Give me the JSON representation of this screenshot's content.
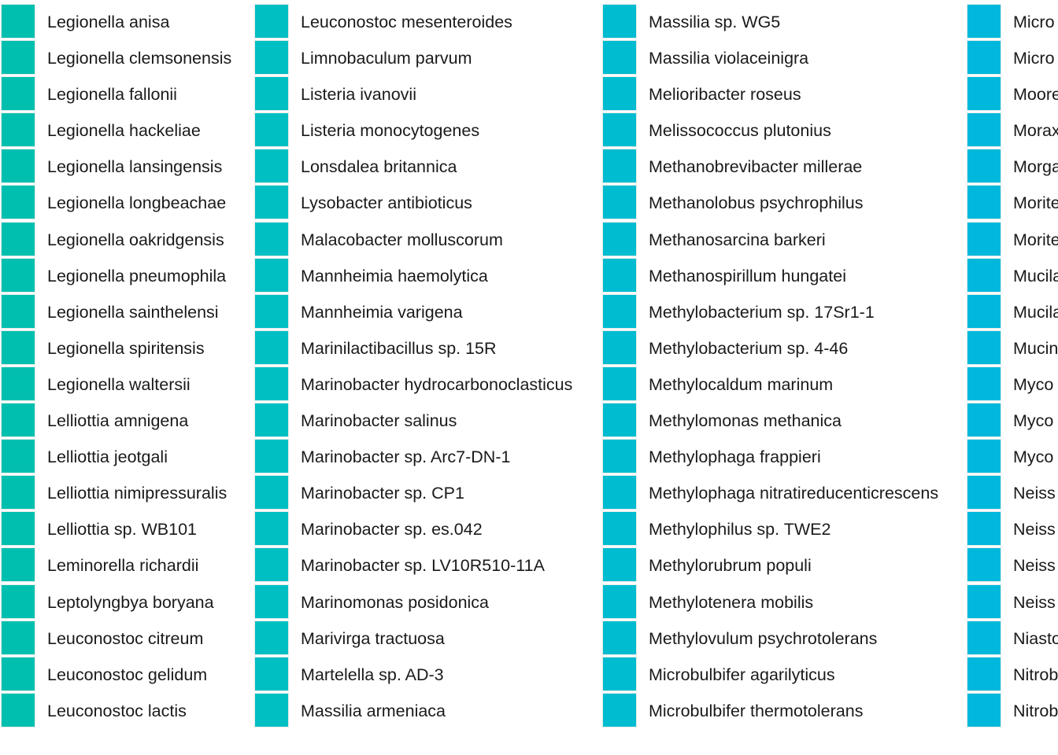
{
  "chart_data": {
    "type": "legend",
    "columns": [
      {
        "color": "#00bfaf",
        "entries": [
          "Legionella anisa",
          "Legionella clemsonensis",
          "Legionella fallonii",
          "Legionella hackeliae",
          "Legionella lansingensis",
          "Legionella longbeachae",
          "Legionella oakridgensis",
          "Legionella pneumophila",
          "Legionella sainthelensi",
          "Legionella spiritensis",
          "Legionella waltersii",
          "Lelliottia amnigena",
          "Lelliottia jeotgali",
          "Lelliottia nimipressuralis",
          "Lelliottia sp. WB101",
          "Leminorella richardii",
          "Leptolyngbya boryana",
          "Leuconostoc citreum",
          "Leuconostoc gelidum",
          "Leuconostoc lactis"
        ]
      },
      {
        "color": "#00bfc2",
        "entries": [
          "Leuconostoc mesenteroides",
          "Limnobaculum parvum",
          "Listeria ivanovii",
          "Listeria monocytogenes",
          "Lonsdalea britannica",
          "Lysobacter antibioticus",
          "Malacobacter molluscorum",
          "Mannheimia haemolytica",
          "Mannheimia varigena",
          "Marinilactibacillus sp. 15R",
          "Marinobacter hydrocarbonoclasticus",
          "Marinobacter salinus",
          "Marinobacter sp. Arc7-DN-1",
          "Marinobacter sp. CP1",
          "Marinobacter sp. es.042",
          "Marinobacter sp. LV10R510-11A",
          "Marinomonas posidonica",
          "Marivirga tractuosa",
          "Martelella sp. AD-3",
          "Massilia armeniaca"
        ]
      },
      {
        "color": "#00bcd0",
        "entries": [
          "Massilia sp. WG5",
          "Massilia violaceinigra",
          "Melioribacter roseus",
          "Melissococcus plutonius",
          "Methanobrevibacter millerae",
          "Methanolobus psychrophilus",
          "Methanosarcina barkeri",
          "Methanospirillum hungatei",
          "Methylobacterium sp. 17Sr1-1",
          "Methylobacterium sp. 4-46",
          "Methylocaldum marinum",
          "Methylomonas methanica",
          "Methylophaga frappieri",
          "Methylophaga nitratireducenticrescens",
          "Methylophilus sp. TWE2",
          "Methylorubrum populi",
          "Methylotenera mobilis",
          "Methylovulum psychrotolerans",
          "Microbulbifer agarilyticus",
          "Microbulbifer thermotolerans"
        ]
      },
      {
        "color": "#00b8dc",
        "entries": [
          "Micro",
          "Micro",
          "Moore",
          "Morax",
          "Morga",
          "Morite",
          "Morite",
          "Mucila",
          "Mucila",
          "Mucin",
          "Myco",
          "Myco",
          "Myco",
          "Neiss",
          "Neiss",
          "Neiss",
          "Neiss",
          "Niasto",
          "Nitrob",
          "Nitrob"
        ]
      }
    ]
  }
}
